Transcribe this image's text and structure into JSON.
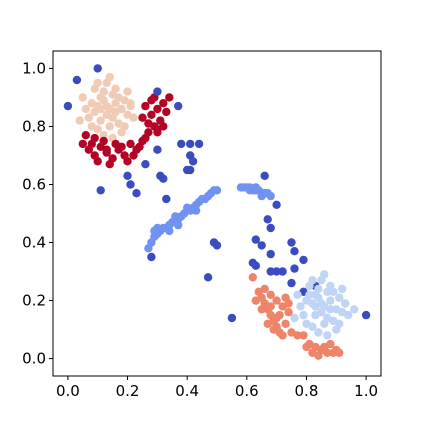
{
  "chart_data": {
    "type": "scatter",
    "title": "",
    "xlabel": "",
    "ylabel": "",
    "xlim": [
      -0.05,
      1.05
    ],
    "ylim": [
      -0.06,
      1.06
    ],
    "grid": false,
    "legend": "none",
    "x_ticks": [
      "0.0",
      "0.2",
      "0.4",
      "0.6",
      "0.8",
      "1.0"
    ],
    "y_ticks": [
      "0.0",
      "0.2",
      "0.4",
      "0.6",
      "0.8",
      "1.0"
    ],
    "series": [
      {
        "color": "#f2cbb7",
        "points": [
          [
            0.1,
            0.87
          ],
          [
            0.12,
            0.89
          ],
          [
            0.14,
            0.86
          ],
          [
            0.16,
            0.88
          ],
          [
            0.13,
            0.84
          ],
          [
            0.11,
            0.82
          ],
          [
            0.15,
            0.83
          ],
          [
            0.18,
            0.86
          ],
          [
            0.09,
            0.85
          ],
          [
            0.17,
            0.9
          ],
          [
            0.12,
            0.92
          ],
          [
            0.08,
            0.88
          ],
          [
            0.14,
            0.8
          ],
          [
            0.2,
            0.84
          ],
          [
            0.1,
            0.79
          ],
          [
            0.16,
            0.93
          ],
          [
            0.13,
            0.95
          ],
          [
            0.07,
            0.83
          ],
          [
            0.19,
            0.89
          ],
          [
            0.21,
            0.87
          ],
          [
            0.11,
            0.9
          ],
          [
            0.15,
            0.91
          ],
          [
            0.06,
            0.86
          ],
          [
            0.12,
            0.77
          ],
          [
            0.17,
            0.81
          ],
          [
            0.09,
            0.93
          ],
          [
            0.14,
            0.97
          ],
          [
            0.22,
            0.83
          ],
          [
            0.18,
            0.78
          ],
          [
            0.05,
            0.9
          ],
          [
            0.08,
            0.8
          ],
          [
            0.2,
            0.92
          ],
          [
            0.16,
            0.85
          ],
          [
            0.13,
            0.87
          ],
          [
            0.11,
            0.86
          ],
          [
            0.04,
            0.82
          ],
          [
            0.1,
            0.95
          ],
          [
            0.19,
            0.8
          ],
          [
            0.15,
            0.76
          ],
          [
            0.21,
            0.88
          ]
        ]
      },
      {
        "color": "#b40426",
        "points": [
          [
            0.05,
            0.74
          ],
          [
            0.07,
            0.72
          ],
          [
            0.09,
            0.7
          ],
          [
            0.11,
            0.73
          ],
          [
            0.13,
            0.71
          ],
          [
            0.15,
            0.69
          ],
          [
            0.17,
            0.72
          ],
          [
            0.19,
            0.7
          ],
          [
            0.21,
            0.74
          ],
          [
            0.23,
            0.72
          ],
          [
            0.25,
            0.75
          ],
          [
            0.27,
            0.78
          ],
          [
            0.29,
            0.8
          ],
          [
            0.31,
            0.82
          ],
          [
            0.28,
            0.84
          ],
          [
            0.26,
            0.87
          ],
          [
            0.28,
            0.89
          ],
          [
            0.3,
            0.86
          ],
          [
            0.32,
            0.88
          ],
          [
            0.34,
            0.9
          ],
          [
            0.33,
            0.85
          ],
          [
            0.3,
            0.79
          ],
          [
            0.27,
            0.81
          ],
          [
            0.25,
            0.83
          ],
          [
            0.09,
            0.76
          ],
          [
            0.12,
            0.75
          ],
          [
            0.16,
            0.74
          ],
          [
            0.2,
            0.68
          ],
          [
            0.22,
            0.7
          ],
          [
            0.1,
            0.68
          ],
          [
            0.14,
            0.67
          ],
          [
            0.06,
            0.77
          ],
          [
            0.18,
            0.73
          ],
          [
            0.08,
            0.74
          ],
          [
            0.29,
            0.9
          ],
          [
            0.24,
            0.73
          ],
          [
            0.3,
            0.78
          ],
          [
            0.32,
            0.8
          ],
          [
            0.26,
            0.76
          ],
          [
            0.13,
            0.72
          ]
        ]
      },
      {
        "color": "#3b4cc0",
        "points": [
          [
            0.03,
            0.96
          ],
          [
            0.1,
            1.0
          ],
          [
            0.37,
            0.87
          ],
          [
            0.38,
            0.74
          ],
          [
            0.41,
            0.74
          ],
          [
            0.44,
            0.74
          ],
          [
            0.3,
            0.72
          ],
          [
            0.41,
            0.7
          ],
          [
            0.42,
            0.68
          ],
          [
            0.4,
            0.65
          ],
          [
            0.26,
            0.67
          ],
          [
            0.2,
            0.63
          ],
          [
            0.31,
            0.63
          ],
          [
            0.32,
            0.62
          ],
          [
            0.21,
            0.6
          ],
          [
            0.23,
            0.57
          ],
          [
            0.11,
            0.58
          ],
          [
            0.33,
            0.55
          ],
          [
            0.41,
            0.65
          ],
          [
            0.28,
            0.35
          ],
          [
            0.49,
            0.4
          ],
          [
            0.5,
            0.39
          ],
          [
            0.47,
            0.28
          ],
          [
            0.55,
            0.14
          ],
          [
            0.66,
            0.63
          ],
          [
            0.66,
            0.57
          ],
          [
            0.7,
            0.53
          ],
          [
            0.67,
            0.48
          ],
          [
            0.68,
            0.45
          ],
          [
            0.63,
            0.41
          ],
          [
            0.65,
            0.39
          ],
          [
            0.75,
            0.4
          ],
          [
            0.76,
            0.37
          ],
          [
            0.79,
            0.34
          ],
          [
            0.68,
            0.36
          ],
          [
            0.62,
            0.33
          ],
          [
            0.63,
            0.32
          ],
          [
            0.68,
            0.3
          ],
          [
            0.7,
            0.3
          ],
          [
            0.72,
            0.3
          ],
          [
            0.76,
            0.31
          ],
          [
            0.75,
            0.26
          ],
          [
            0.79,
            0.23
          ],
          [
            0.83,
            0.25
          ],
          [
            1.0,
            0.15
          ],
          [
            0.0,
            0.87
          ],
          [
            0.3,
            0.92
          ]
        ]
      },
      {
        "color": "#6f92f3",
        "points": [
          [
            0.28,
            0.4
          ],
          [
            0.29,
            0.42
          ],
          [
            0.3,
            0.43
          ],
          [
            0.31,
            0.44
          ],
          [
            0.33,
            0.45
          ],
          [
            0.34,
            0.46
          ],
          [
            0.35,
            0.47
          ],
          [
            0.36,
            0.47
          ],
          [
            0.37,
            0.48
          ],
          [
            0.38,
            0.49
          ],
          [
            0.39,
            0.5
          ],
          [
            0.41,
            0.51
          ],
          [
            0.42,
            0.52
          ],
          [
            0.43,
            0.53
          ],
          [
            0.44,
            0.54
          ],
          [
            0.45,
            0.55
          ],
          [
            0.47,
            0.56
          ],
          [
            0.48,
            0.57
          ],
          [
            0.49,
            0.58
          ],
          [
            0.5,
            0.58
          ],
          [
            0.29,
            0.44
          ],
          [
            0.32,
            0.45
          ],
          [
            0.34,
            0.44
          ],
          [
            0.36,
            0.49
          ],
          [
            0.4,
            0.52
          ],
          [
            0.46,
            0.55
          ],
          [
            0.58,
            0.59
          ],
          [
            0.59,
            0.59
          ],
          [
            0.6,
            0.59
          ],
          [
            0.61,
            0.58
          ],
          [
            0.62,
            0.58
          ],
          [
            0.63,
            0.58
          ],
          [
            0.64,
            0.58
          ],
          [
            0.65,
            0.57
          ],
          [
            0.66,
            0.57
          ],
          [
            0.67,
            0.57
          ],
          [
            0.68,
            0.56
          ],
          [
            0.61,
            0.59
          ],
          [
            0.63,
            0.59
          ],
          [
            0.3,
            0.45
          ],
          [
            0.37,
            0.46
          ],
          [
            0.43,
            0.51
          ],
          [
            0.65,
            0.56
          ],
          [
            0.27,
            0.38
          ]
        ]
      },
      {
        "color": "#c0d4f5",
        "points": [
          [
            0.82,
            0.19
          ],
          [
            0.84,
            0.21
          ],
          [
            0.86,
            0.18
          ],
          [
            0.88,
            0.2
          ],
          [
            0.85,
            0.16
          ],
          [
            0.83,
            0.15
          ],
          [
            0.87,
            0.14
          ],
          [
            0.9,
            0.17
          ],
          [
            0.81,
            0.22
          ],
          [
            0.89,
            0.23
          ],
          [
            0.84,
            0.24
          ],
          [
            0.8,
            0.2
          ],
          [
            0.86,
            0.12
          ],
          [
            0.92,
            0.16
          ],
          [
            0.82,
            0.11
          ],
          [
            0.88,
            0.25
          ],
          [
            0.85,
            0.27
          ],
          [
            0.79,
            0.15
          ],
          [
            0.91,
            0.21
          ],
          [
            0.93,
            0.19
          ],
          [
            0.83,
            0.22
          ],
          [
            0.87,
            0.23
          ],
          [
            0.78,
            0.18
          ],
          [
            0.84,
            0.09
          ],
          [
            0.89,
            0.13
          ],
          [
            0.81,
            0.25
          ],
          [
            0.86,
            0.29
          ],
          [
            0.94,
            0.15
          ],
          [
            0.9,
            0.1
          ],
          [
            0.77,
            0.22
          ],
          [
            0.8,
            0.12
          ],
          [
            0.92,
            0.24
          ],
          [
            0.88,
            0.17
          ],
          [
            0.85,
            0.19
          ],
          [
            0.83,
            0.18
          ],
          [
            0.76,
            0.14
          ],
          [
            0.82,
            0.27
          ],
          [
            0.91,
            0.12
          ],
          [
            0.87,
            0.08
          ],
          [
            0.96,
            0.17
          ]
        ]
      },
      {
        "color": "#ee8468",
        "points": [
          [
            0.64,
            0.23
          ],
          [
            0.65,
            0.21
          ],
          [
            0.66,
            0.19
          ],
          [
            0.67,
            0.17
          ],
          [
            0.68,
            0.15
          ],
          [
            0.69,
            0.13
          ],
          [
            0.7,
            0.11
          ],
          [
            0.71,
            0.09
          ],
          [
            0.72,
            0.08
          ],
          [
            0.66,
            0.24
          ],
          [
            0.68,
            0.22
          ],
          [
            0.7,
            0.2
          ],
          [
            0.72,
            0.18
          ],
          [
            0.74,
            0.16
          ],
          [
            0.67,
            0.12
          ],
          [
            0.69,
            0.1
          ],
          [
            0.73,
            0.12
          ],
          [
            0.75,
            0.09
          ],
          [
            0.77,
            0.08
          ],
          [
            0.79,
            0.08
          ],
          [
            0.81,
            0.05
          ],
          [
            0.83,
            0.04
          ],
          [
            0.85,
            0.03
          ],
          [
            0.87,
            0.02
          ],
          [
            0.89,
            0.02
          ],
          [
            0.91,
            0.02
          ],
          [
            0.84,
            0.01
          ],
          [
            0.86,
            0.04
          ],
          [
            0.88,
            0.05
          ],
          [
            0.82,
            0.02
          ],
          [
            0.9,
            0.03
          ],
          [
            0.8,
            0.04
          ],
          [
            0.63,
            0.2
          ],
          [
            0.65,
            0.17
          ],
          [
            0.71,
            0.15
          ],
          [
            0.73,
            0.21
          ],
          [
            0.62,
            0.28
          ],
          [
            0.74,
            0.19
          ],
          [
            0.68,
            0.18
          ],
          [
            0.7,
            0.14
          ]
        ]
      }
    ]
  }
}
